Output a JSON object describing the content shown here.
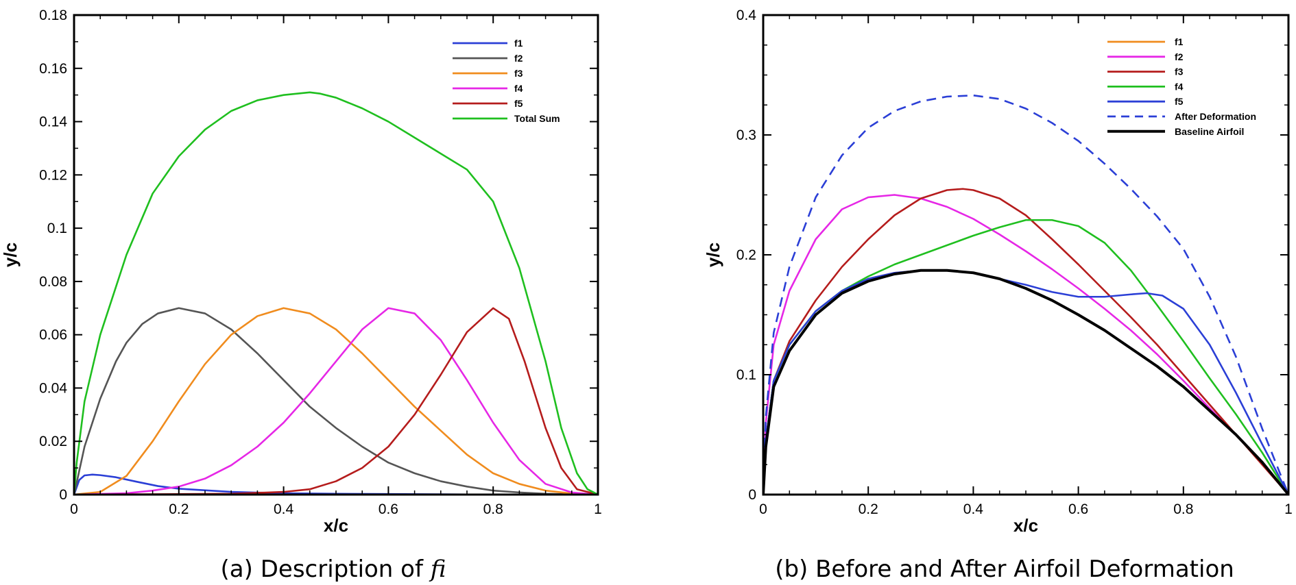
{
  "chart_data": [
    {
      "type": "line",
      "caption": "(a) Description of",
      "caption_math": "f",
      "caption_math_sub": "i",
      "xlabel": "x/c",
      "ylabel": "y/c",
      "xlim": [
        0,
        1
      ],
      "ylim": [
        0,
        0.18
      ],
      "x_ticks": [
        0,
        0.2,
        0.4,
        0.6,
        0.8,
        1
      ],
      "x_tick_labels": [
        "0",
        "0.2",
        "0.4",
        "0.6",
        "0.8",
        "1"
      ],
      "y_ticks": [
        0,
        0.02,
        0.04,
        0.06,
        0.08,
        0.1,
        0.12,
        0.14,
        0.16,
        0.18
      ],
      "y_tick_labels": [
        "0",
        "0.02",
        "0.04",
        "0.06",
        "0.08",
        "0.1",
        "0.12",
        "0.14",
        "0.16",
        "0.18"
      ],
      "grid": false,
      "legend_position": "top-right",
      "series": [
        {
          "name": "f1",
          "color": "#2b3fd6",
          "dash": false,
          "x": [
            0,
            0.01,
            0.02,
            0.035,
            0.05,
            0.08,
            0.12,
            0.16,
            0.2,
            0.3,
            0.4,
            0.5,
            0.6,
            0.7,
            0.8,
            0.9,
            1
          ],
          "y": [
            0,
            0.0055,
            0.0072,
            0.0075,
            0.0073,
            0.0065,
            0.0048,
            0.0032,
            0.0022,
            0.001,
            0.0005,
            0.0003,
            0.0002,
            0.0001,
            0,
            0,
            0
          ]
        },
        {
          "name": "f2",
          "color": "#555555",
          "dash": false,
          "x": [
            0,
            0.02,
            0.05,
            0.08,
            0.1,
            0.13,
            0.16,
            0.2,
            0.25,
            0.3,
            0.35,
            0.4,
            0.45,
            0.5,
            0.55,
            0.6,
            0.65,
            0.7,
            0.75,
            0.8,
            0.85,
            0.9,
            0.95,
            1
          ],
          "y": [
            0,
            0.018,
            0.036,
            0.05,
            0.057,
            0.064,
            0.068,
            0.07,
            0.068,
            0.062,
            0.053,
            0.043,
            0.033,
            0.025,
            0.018,
            0.012,
            0.008,
            0.005,
            0.003,
            0.0015,
            0.0008,
            0.0003,
            0.0001,
            0
          ]
        },
        {
          "name": "f3",
          "color": "#f08c1e",
          "dash": false,
          "x": [
            0,
            0.05,
            0.1,
            0.15,
            0.2,
            0.25,
            0.3,
            0.35,
            0.4,
            0.45,
            0.5,
            0.55,
            0.6,
            0.65,
            0.7,
            0.75,
            0.8,
            0.85,
            0.9,
            0.95,
            1
          ],
          "y": [
            0,
            0.001,
            0.007,
            0.02,
            0.035,
            0.049,
            0.06,
            0.067,
            0.07,
            0.068,
            0.062,
            0.053,
            0.043,
            0.033,
            0.024,
            0.015,
            0.008,
            0.004,
            0.0015,
            0.0004,
            0
          ]
        },
        {
          "name": "f4",
          "color": "#e627e6",
          "dash": false,
          "x": [
            0,
            0.1,
            0.15,
            0.2,
            0.25,
            0.3,
            0.35,
            0.4,
            0.45,
            0.5,
            0.55,
            0.6,
            0.65,
            0.7,
            0.75,
            0.8,
            0.85,
            0.9,
            0.95,
            1
          ],
          "y": [
            0,
            0.0005,
            0.0015,
            0.003,
            0.006,
            0.011,
            0.018,
            0.027,
            0.038,
            0.05,
            0.062,
            0.07,
            0.068,
            0.058,
            0.043,
            0.027,
            0.013,
            0.004,
            0.0008,
            0
          ]
        },
        {
          "name": "f5",
          "color": "#b51c1c",
          "dash": false,
          "x": [
            0,
            0.3,
            0.4,
            0.45,
            0.5,
            0.55,
            0.6,
            0.65,
            0.7,
            0.75,
            0.8,
            0.83,
            0.86,
            0.9,
            0.93,
            0.96,
            1
          ],
          "y": [
            0,
            0.0003,
            0.001,
            0.002,
            0.005,
            0.01,
            0.018,
            0.03,
            0.045,
            0.061,
            0.07,
            0.066,
            0.05,
            0.025,
            0.01,
            0.002,
            0
          ]
        },
        {
          "name": "Total Sum",
          "color": "#1fbf1f",
          "dash": false,
          "x": [
            0,
            0.005,
            0.02,
            0.05,
            0.1,
            0.15,
            0.2,
            0.25,
            0.3,
            0.35,
            0.4,
            0.45,
            0.47,
            0.5,
            0.55,
            0.6,
            0.65,
            0.7,
            0.75,
            0.8,
            0.85,
            0.9,
            0.93,
            0.96,
            0.98,
            1
          ],
          "y": [
            0,
            0.012,
            0.035,
            0.06,
            0.09,
            0.113,
            0.127,
            0.137,
            0.144,
            0.148,
            0.15,
            0.151,
            0.1505,
            0.149,
            0.145,
            0.14,
            0.134,
            0.128,
            0.122,
            0.11,
            0.085,
            0.05,
            0.025,
            0.008,
            0.002,
            0
          ]
        }
      ]
    },
    {
      "type": "line",
      "caption": "(b) Before and After Airfoil Deformation",
      "xlabel": "x/c",
      "ylabel": "y/c",
      "xlim": [
        0,
        1
      ],
      "ylim": [
        0,
        0.4
      ],
      "x_ticks": [
        0,
        0.2,
        0.4,
        0.6,
        0.8,
        1
      ],
      "x_tick_labels": [
        "0",
        "0.2",
        "0.4",
        "0.6",
        "0.8",
        "1"
      ],
      "y_ticks": [
        0,
        0.1,
        0.2,
        0.3,
        0.4
      ],
      "y_tick_labels": [
        "0",
        "0.1",
        "0.2",
        "0.3",
        "0.4"
      ],
      "grid": false,
      "legend_position": "top-right",
      "series": [
        {
          "name": "f1",
          "color": "#f08c1e",
          "dash": false,
          "x": [
            0,
            0.005,
            0.02,
            0.05,
            0.1,
            0.15,
            0.2,
            0.25,
            0.3,
            0.35,
            0.4,
            0.45,
            0.5,
            0.55,
            0.6,
            0.65,
            0.7,
            0.75,
            0.8,
            0.85,
            0.9,
            0.95,
            1
          ],
          "y": [
            0,
            0.045,
            0.095,
            0.125,
            0.153,
            0.17,
            0.18,
            0.185,
            0.187,
            0.187,
            0.185,
            0.18,
            0.172,
            0.162,
            0.15,
            0.137,
            0.122,
            0.107,
            0.09,
            0.07,
            0.05,
            0.027,
            0
          ]
        },
        {
          "name": "f2",
          "color": "#e627e6",
          "dash": false,
          "x": [
            0,
            0.005,
            0.02,
            0.05,
            0.1,
            0.15,
            0.2,
            0.25,
            0.3,
            0.35,
            0.4,
            0.45,
            0.5,
            0.55,
            0.6,
            0.65,
            0.7,
            0.75,
            0.8,
            0.85,
            0.9,
            0.95,
            1
          ],
          "y": [
            0,
            0.06,
            0.125,
            0.17,
            0.213,
            0.238,
            0.248,
            0.25,
            0.247,
            0.24,
            0.23,
            0.217,
            0.203,
            0.188,
            0.172,
            0.155,
            0.137,
            0.117,
            0.095,
            0.072,
            0.05,
            0.026,
            0
          ]
        },
        {
          "name": "f3",
          "color": "#b51c1c",
          "dash": false,
          "x": [
            0,
            0.005,
            0.02,
            0.05,
            0.1,
            0.15,
            0.2,
            0.25,
            0.3,
            0.35,
            0.38,
            0.4,
            0.45,
            0.5,
            0.55,
            0.6,
            0.65,
            0.7,
            0.75,
            0.8,
            0.85,
            0.9,
            0.95,
            1
          ],
          "y": [
            0,
            0.045,
            0.095,
            0.128,
            0.162,
            0.19,
            0.213,
            0.233,
            0.247,
            0.254,
            0.255,
            0.254,
            0.247,
            0.233,
            0.213,
            0.192,
            0.17,
            0.148,
            0.125,
            0.1,
            0.075,
            0.05,
            0.025,
            0
          ]
        },
        {
          "name": "f4",
          "color": "#1fbf1f",
          "dash": false,
          "x": [
            0,
            0.005,
            0.02,
            0.05,
            0.1,
            0.15,
            0.2,
            0.25,
            0.3,
            0.35,
            0.4,
            0.45,
            0.5,
            0.55,
            0.6,
            0.65,
            0.7,
            0.75,
            0.8,
            0.85,
            0.9,
            0.95,
            1
          ],
          "y": [
            0,
            0.045,
            0.095,
            0.125,
            0.153,
            0.17,
            0.182,
            0.192,
            0.2,
            0.208,
            0.216,
            0.223,
            0.229,
            0.229,
            0.224,
            0.21,
            0.187,
            0.158,
            0.128,
            0.097,
            0.067,
            0.035,
            0
          ]
        },
        {
          "name": "f5",
          "color": "#2b3fd6",
          "dash": false,
          "x": [
            0,
            0.005,
            0.02,
            0.05,
            0.1,
            0.15,
            0.2,
            0.25,
            0.3,
            0.35,
            0.4,
            0.45,
            0.5,
            0.55,
            0.6,
            0.65,
            0.7,
            0.73,
            0.76,
            0.8,
            0.85,
            0.9,
            0.95,
            1
          ],
          "y": [
            0,
            0.045,
            0.095,
            0.125,
            0.153,
            0.17,
            0.18,
            0.185,
            0.187,
            0.187,
            0.185,
            0.18,
            0.175,
            0.169,
            0.165,
            0.165,
            0.167,
            0.168,
            0.166,
            0.155,
            0.125,
            0.085,
            0.042,
            0
          ]
        },
        {
          "name": "After Deformation",
          "color": "#2b3fd6",
          "dash": true,
          "x": [
            0,
            0.005,
            0.02,
            0.05,
            0.1,
            0.15,
            0.2,
            0.25,
            0.3,
            0.35,
            0.4,
            0.45,
            0.5,
            0.55,
            0.6,
            0.65,
            0.7,
            0.75,
            0.8,
            0.85,
            0.9,
            0.95,
            1
          ],
          "y": [
            0,
            0.065,
            0.135,
            0.19,
            0.248,
            0.283,
            0.306,
            0.32,
            0.328,
            0.332,
            0.333,
            0.33,
            0.322,
            0.31,
            0.295,
            0.276,
            0.255,
            0.232,
            0.205,
            0.165,
            0.115,
            0.055,
            0
          ]
        },
        {
          "name": "Baseline Airfoil",
          "color": "#000000",
          "dash": false,
          "bold": true,
          "x": [
            0,
            0.005,
            0.02,
            0.05,
            0.1,
            0.15,
            0.2,
            0.25,
            0.3,
            0.35,
            0.4,
            0.45,
            0.5,
            0.55,
            0.6,
            0.65,
            0.7,
            0.75,
            0.8,
            0.85,
            0.9,
            0.95,
            1
          ],
          "y": [
            0,
            0.04,
            0.09,
            0.12,
            0.15,
            0.168,
            0.178,
            0.184,
            0.187,
            0.187,
            0.185,
            0.18,
            0.172,
            0.162,
            0.15,
            0.137,
            0.122,
            0.107,
            0.09,
            0.07,
            0.05,
            0.027,
            0
          ]
        }
      ]
    }
  ]
}
